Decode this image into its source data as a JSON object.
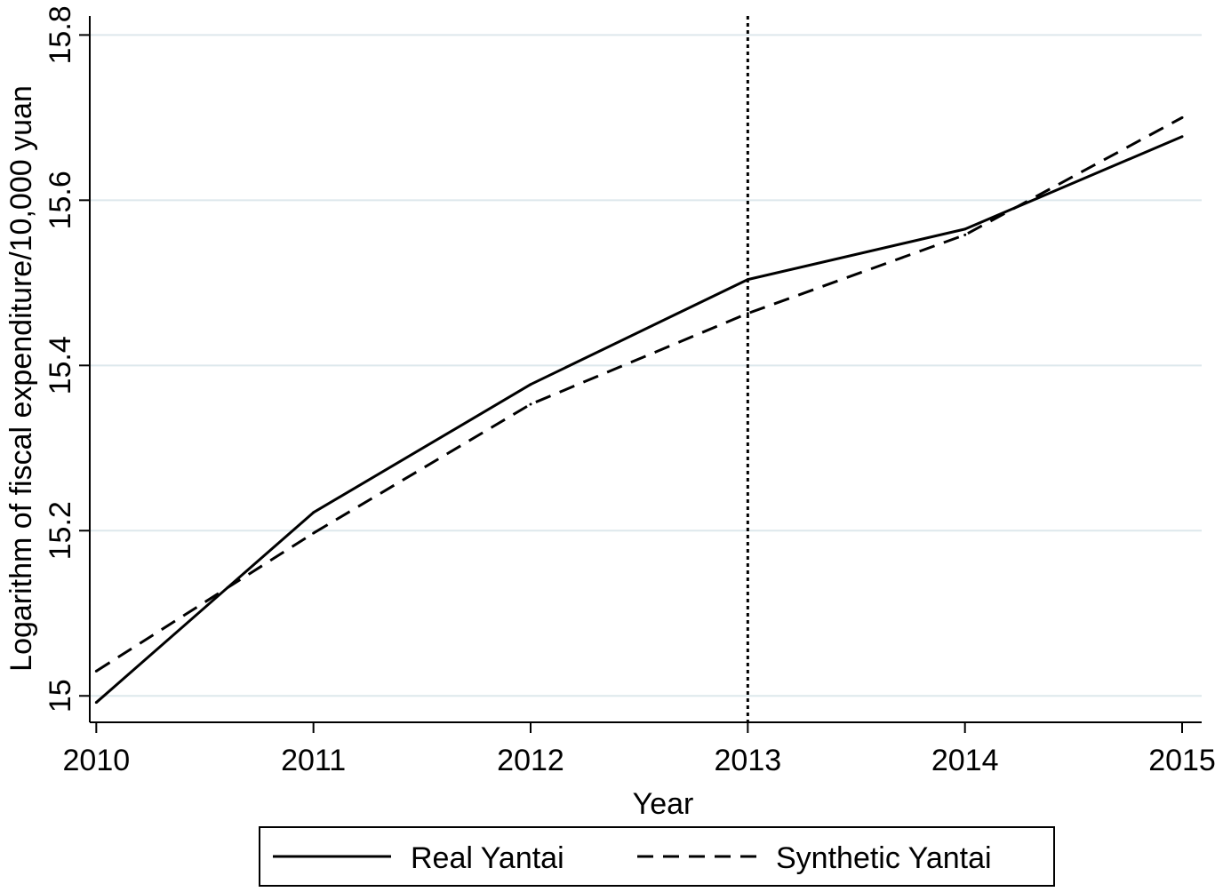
{
  "chart_data": {
    "type": "line",
    "xlabel": "Year",
    "ylabel": "Logarithm of fiscal expenditure/10,000 yuan",
    "x": [
      2010,
      2011,
      2012,
      2013,
      2014,
      2015
    ],
    "x_ticks": [
      "2010",
      "2011",
      "2012",
      "2013",
      "2014",
      "2015"
    ],
    "y_ticks": [
      "15",
      "15.2",
      "15.4",
      "15.6",
      "15.8"
    ],
    "y_tick_values": [
      15.0,
      15.2,
      15.4,
      15.6,
      15.8
    ],
    "xlim": [
      2009.97,
      2015.09
    ],
    "ylim": [
      14.968,
      15.823
    ],
    "grid": "horizontal",
    "treatment_line": {
      "x": 2013,
      "style": "dotted"
    },
    "series": [
      {
        "name": "Real Yantai",
        "style": "solid",
        "values": [
          14.992,
          15.222,
          15.377,
          15.504,
          15.565,
          15.677
        ]
      },
      {
        "name": "Synthetic Yantai",
        "style": "dashed",
        "values": [
          15.03,
          15.197,
          15.353,
          15.463,
          15.558,
          15.7
        ]
      }
    ],
    "legend": {
      "position": "bottom",
      "entries": [
        "Real Yantai",
        "Synthetic Yantai"
      ]
    },
    "colors": {
      "line": "#000000",
      "grid": "#dde8ec",
      "background": "#ffffff"
    }
  }
}
